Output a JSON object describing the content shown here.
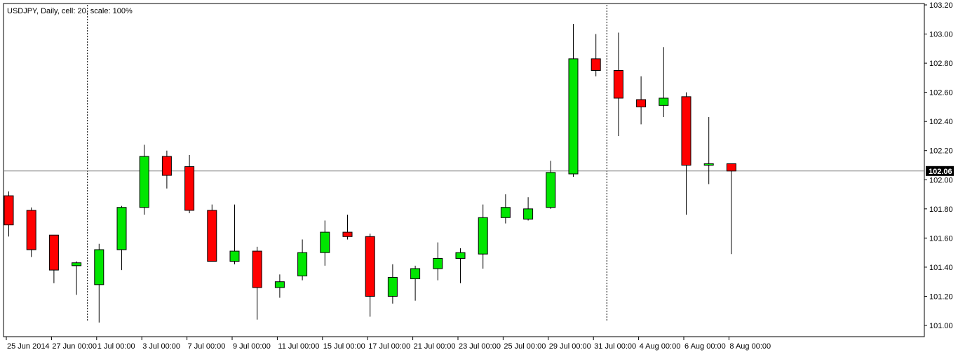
{
  "header": {
    "info_text": "USDJPY, Daily, cell: 20, scale: 100%"
  },
  "colors": {
    "bull": "#00e600",
    "bear": "#ff0000",
    "outline": "#000000",
    "price_marker_bg": "#000000"
  },
  "current_price": {
    "value": 102.06,
    "label": "102.06"
  },
  "chart_data": {
    "type": "candlestick",
    "symbol": "USDJPY",
    "timeframe": "Daily",
    "ylim": [
      100.9,
      103.22
    ],
    "y_ticks": [
      101.0,
      101.2,
      101.4,
      101.6,
      101.8,
      102.0,
      102.2,
      102.4,
      102.6,
      102.8,
      103.0,
      103.2
    ],
    "y_tick_labels": [
      "101.00",
      "101.20",
      "101.40",
      "101.60",
      "101.80",
      "102.00",
      "102.20",
      "102.40",
      "102.60",
      "102.80",
      "103.00",
      "103.20"
    ],
    "x_tick_labels": [
      "25 Jun 2014",
      "27 Jun 00:00",
      "1 Jul 00:00",
      "3 Jul 00:00",
      "7 Jul 00:00",
      "9 Jul 00:00",
      "11 Jul 00:00",
      "15 Jul 00:00",
      "17 Jul 00:00",
      "21 Jul 00:00",
      "23 Jul 00:00",
      "25 Jul 00:00",
      "29 Jul 00:00",
      "31 Jul 00:00",
      "4 Aug 00:00",
      "6 Aug 00:00",
      "8 Aug 00:00"
    ],
    "period_separators_after_index": [
      3,
      26
    ],
    "candles": [
      {
        "date": "25 Jun 2014",
        "open": 101.89,
        "high": 101.92,
        "low": 101.61,
        "close": 101.69
      },
      {
        "date": "26 Jun 2014",
        "open": 101.79,
        "high": 101.81,
        "low": 101.47,
        "close": 101.52
      },
      {
        "date": "27 Jun 2014",
        "open": 101.62,
        "high": 101.62,
        "low": 101.29,
        "close": 101.38
      },
      {
        "date": "30 Jun 2014",
        "open": 101.41,
        "high": 101.44,
        "low": 101.21,
        "close": 101.43
      },
      {
        "date": "1 Jul 2014",
        "open": 101.28,
        "high": 101.56,
        "low": 101.02,
        "close": 101.52
      },
      {
        "date": "2 Jul 2014",
        "open": 101.52,
        "high": 101.82,
        "low": 101.38,
        "close": 101.81
      },
      {
        "date": "3 Jul 2014",
        "open": 101.81,
        "high": 102.24,
        "low": 101.76,
        "close": 102.16
      },
      {
        "date": "4 Jul 2014",
        "open": 102.16,
        "high": 102.2,
        "low": 101.94,
        "close": 102.03
      },
      {
        "date": "7 Jul 2014",
        "open": 102.09,
        "high": 102.17,
        "low": 101.77,
        "close": 101.79
      },
      {
        "date": "8 Jul 2014",
        "open": 101.79,
        "high": 101.83,
        "low": 101.44,
        "close": 101.44
      },
      {
        "date": "9 Jul 2014",
        "open": 101.44,
        "high": 101.83,
        "low": 101.42,
        "close": 101.51
      },
      {
        "date": "10 Jul 2014",
        "open": 101.51,
        "high": 101.54,
        "low": 101.04,
        "close": 101.26
      },
      {
        "date": "11 Jul 2014",
        "open": 101.26,
        "high": 101.35,
        "low": 101.19,
        "close": 101.3
      },
      {
        "date": "14 Jul 2014",
        "open": 101.34,
        "high": 101.59,
        "low": 101.31,
        "close": 101.5
      },
      {
        "date": "15 Jul 2014",
        "open": 101.5,
        "high": 101.72,
        "low": 101.41,
        "close": 101.64
      },
      {
        "date": "16 Jul 2014",
        "open": 101.64,
        "high": 101.76,
        "low": 101.59,
        "close": 101.61
      },
      {
        "date": "17 Jul 2014",
        "open": 101.61,
        "high": 101.63,
        "low": 101.06,
        "close": 101.2
      },
      {
        "date": "18 Jul 2014",
        "open": 101.2,
        "high": 101.42,
        "low": 101.15,
        "close": 101.33
      },
      {
        "date": "21 Jul 2014",
        "open": 101.32,
        "high": 101.41,
        "low": 101.17,
        "close": 101.39
      },
      {
        "date": "22 Jul 2014",
        "open": 101.39,
        "high": 101.57,
        "low": 101.31,
        "close": 101.46
      },
      {
        "date": "23 Jul 2014",
        "open": 101.46,
        "high": 101.53,
        "low": 101.29,
        "close": 101.5
      },
      {
        "date": "24 Jul 2014",
        "open": 101.49,
        "high": 101.83,
        "low": 101.39,
        "close": 101.74
      },
      {
        "date": "25 Jul 2014",
        "open": 101.74,
        "high": 101.9,
        "low": 101.7,
        "close": 101.81
      },
      {
        "date": "28 Jul 2014",
        "open": 101.73,
        "high": 101.88,
        "low": 101.72,
        "close": 101.8
      },
      {
        "date": "29 Jul 2014",
        "open": 101.81,
        "high": 102.13,
        "low": 101.8,
        "close": 102.05
      },
      {
        "date": "30 Jul 2014",
        "open": 102.04,
        "high": 103.07,
        "low": 102.02,
        "close": 102.83
      },
      {
        "date": "31 Jul 2014",
        "open": 102.83,
        "high": 103.0,
        "low": 102.71,
        "close": 102.75
      },
      {
        "date": "1 Aug 2014",
        "open": 102.75,
        "high": 103.01,
        "low": 102.3,
        "close": 102.56
      },
      {
        "date": "4 Aug 2014",
        "open": 102.55,
        "high": 102.71,
        "low": 102.38,
        "close": 102.5
      },
      {
        "date": "5 Aug 2014",
        "open": 102.51,
        "high": 102.91,
        "low": 102.43,
        "close": 102.56
      },
      {
        "date": "6 Aug 2014",
        "open": 102.57,
        "high": 102.6,
        "low": 101.76,
        "close": 102.1
      },
      {
        "date": "7 Aug 2014",
        "open": 102.1,
        "high": 102.43,
        "low": 101.97,
        "close": 102.11
      },
      {
        "date": "8 Aug 2014",
        "open": 102.11,
        "high": 102.11,
        "low": 101.49,
        "close": 102.06
      }
    ]
  }
}
